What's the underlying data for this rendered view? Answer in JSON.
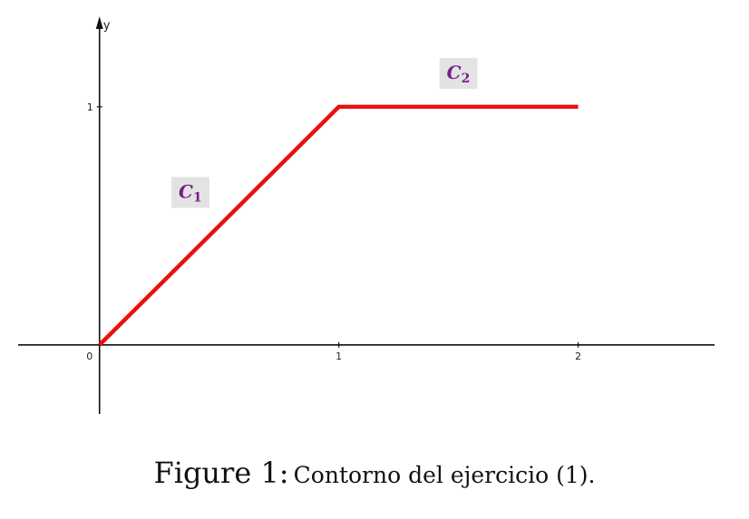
{
  "figure": {
    "axes": {
      "y_label": "y",
      "x_ticks": [
        {
          "value": 0,
          "label": "0"
        },
        {
          "value": 1,
          "label": "1"
        },
        {
          "value": 2,
          "label": "2"
        }
      ],
      "y_ticks": [
        {
          "value": 1,
          "label": "1"
        }
      ],
      "xlim": [
        -0.34,
        2.57
      ],
      "ylim": [
        -0.29,
        1.38
      ],
      "grid": false
    },
    "curve_color": "#e8110f",
    "label_color": "#7a1f88",
    "label_background": "#e3e3e3",
    "curve_points": [
      [
        0,
        0
      ],
      [
        1,
        1
      ],
      [
        2,
        1
      ]
    ],
    "labels": {
      "c1": {
        "main": "C",
        "sub": "1",
        "at": [
          0.38,
          0.64
        ]
      },
      "c2": {
        "main": "C",
        "sub": "2",
        "at": [
          1.5,
          1.14
        ]
      }
    }
  },
  "caption": {
    "prefix": "Figure 1:",
    "text": "Contorno del ejercicio (1)."
  }
}
